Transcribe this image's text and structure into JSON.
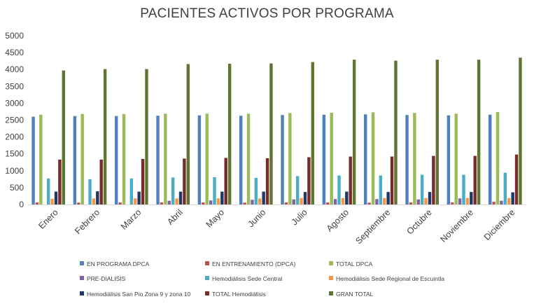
{
  "chart_data": {
    "type": "bar",
    "title": "PACIENTES ACTIVOS POR PROGRAMA",
    "categories": [
      "Enero",
      "Febrero",
      "Marzo",
      "Abril",
      "Mayo",
      "Junio",
      "Julio",
      "Agosto",
      "Septiembre",
      "Octubre",
      "Noviembre",
      "Diciembre"
    ],
    "ylim": [
      0,
      5000
    ],
    "yticks": [
      0,
      500,
      1000,
      1500,
      2000,
      2500,
      3000,
      3500,
      4000,
      4500,
      5000
    ],
    "grid": false,
    "legend_position": "bottom",
    "series": [
      {
        "name": "EN PROGRAMA DPCA",
        "color": "#4f81bd",
        "values": [
          2600,
          2620,
          2620,
          2630,
          2640,
          2630,
          2650,
          2660,
          2670,
          2650,
          2640,
          2660
        ]
      },
      {
        "name": "EN ENTRENAMIENTO (DPCA)",
        "color": "#c0504d",
        "values": [
          60,
          55,
          60,
          60,
          60,
          55,
          60,
          60,
          55,
          60,
          60,
          80
        ]
      },
      {
        "name": "TOTAL DPCA",
        "color": "#9bbb59",
        "values": [
          2660,
          2680,
          2680,
          2690,
          2690,
          2690,
          2710,
          2720,
          2730,
          2710,
          2690,
          2740
        ]
      },
      {
        "name": "PRE-DIALISIS",
        "color": "#8064a2",
        "values": [
          0,
          0,
          0,
          110,
          120,
          140,
          150,
          160,
          160,
          150,
          180,
          110
        ]
      },
      {
        "name": "Hemodiálisis Sede Central",
        "color": "#4bacc6",
        "values": [
          770,
          750,
          770,
          800,
          810,
          790,
          840,
          860,
          860,
          880,
          880,
          940
        ]
      },
      {
        "name": "Hemodiálisis Sede Regional de Escuintla",
        "color": "#f79646",
        "values": [
          170,
          180,
          180,
          180,
          180,
          180,
          190,
          190,
          190,
          190,
          190,
          190
        ]
      },
      {
        "name": "Hemodiálisis San Pio Zona 9 y zona 10",
        "color": "#1f3864",
        "values": [
          380,
          390,
          380,
          380,
          380,
          380,
          370,
          380,
          370,
          370,
          370,
          360
        ]
      },
      {
        "name": "TOTAL Hemodiálisis",
        "color": "#772c2a",
        "values": [
          1330,
          1330,
          1350,
          1360,
          1380,
          1370,
          1400,
          1420,
          1420,
          1440,
          1440,
          1480
        ]
      },
      {
        "name": "GRAN TOTAL",
        "color": "#5f7530",
        "values": [
          3970,
          4010,
          4010,
          4160,
          4170,
          4180,
          4220,
          4290,
          4260,
          4290,
          4290,
          4350
        ]
      }
    ]
  }
}
